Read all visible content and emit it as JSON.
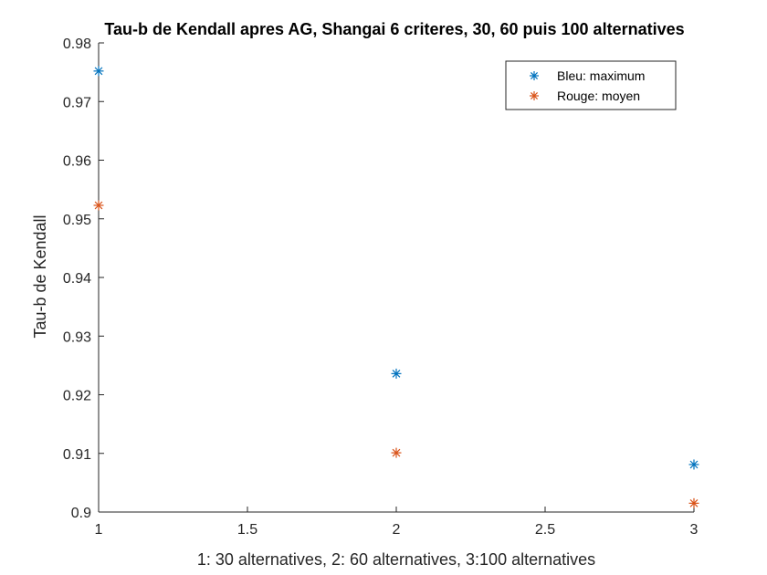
{
  "chart_data": {
    "type": "scatter",
    "title": "Tau-b de Kendall apres AG, Shangai 6 criteres, 30, 60 puis 100 alternatives",
    "xlabel": "1: 30 alternatives, 2: 60 alternatives, 3:100 alternatives",
    "ylabel": "Tau-b de Kendall",
    "xlim": [
      1,
      3
    ],
    "ylim": [
      0.9,
      0.98
    ],
    "xticks": [
      "1",
      "1.5",
      "2",
      "2.5",
      "3"
    ],
    "yticks": [
      "0.9",
      "0.91",
      "0.92",
      "0.93",
      "0.94",
      "0.95",
      "0.96",
      "0.97",
      "0.98"
    ],
    "grid": false,
    "legend_position": "top-right",
    "marker": "asterisk",
    "series": [
      {
        "name": "Bleu: maximum",
        "color": "#0072BD",
        "x": [
          1,
          2,
          3
        ],
        "y": [
          0.9752,
          0.9236,
          0.9081
        ]
      },
      {
        "name": "Rouge: moyen",
        "color": "#D95319",
        "x": [
          1,
          2,
          3
        ],
        "y": [
          0.9523,
          0.9101,
          0.9015
        ]
      }
    ]
  }
}
